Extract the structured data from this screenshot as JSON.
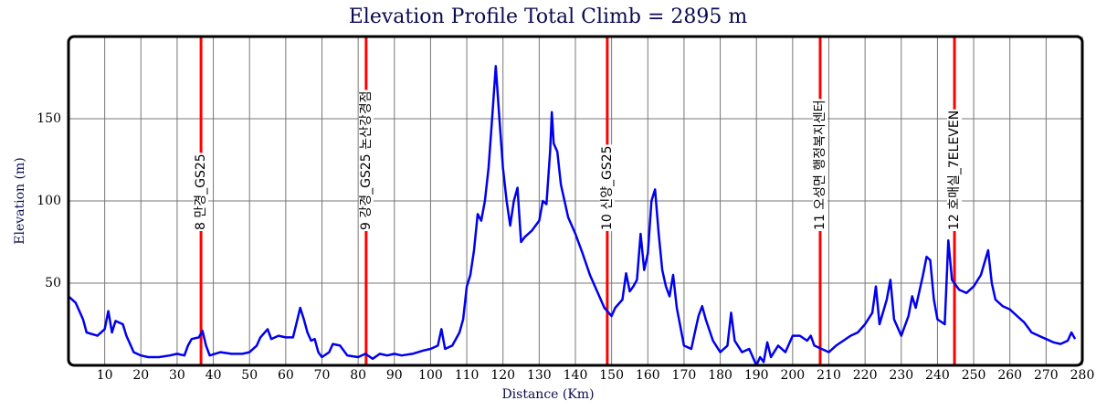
{
  "chart_data": {
    "type": "line",
    "title": "Elevation Profile      Total Climb = 2895 m",
    "xlabel": "Distance (Km)",
    "ylabel": "Elevation (m)",
    "xlim": [
      0,
      280
    ],
    "ylim": [
      0,
      200
    ],
    "xticks": [
      10,
      20,
      30,
      40,
      50,
      60,
      70,
      80,
      90,
      100,
      110,
      120,
      130,
      140,
      150,
      160,
      170,
      180,
      190,
      200,
      210,
      220,
      230,
      240,
      250,
      260,
      270,
      280
    ],
    "yticks": [
      50,
      100,
      150
    ],
    "grid": true,
    "x": [
      0,
      2,
      4,
      5,
      8,
      10,
      11,
      12,
      13,
      15,
      16,
      18,
      20,
      22,
      25,
      28,
      30,
      32,
      33,
      34,
      36,
      37,
      38,
      39,
      42,
      45,
      48,
      50,
      52,
      53,
      55,
      56,
      58,
      60,
      62,
      63,
      64,
      65,
      66,
      67,
      68,
      69,
      70,
      72,
      73,
      75,
      77,
      80,
      82,
      84,
      86,
      88,
      90,
      92,
      95,
      98,
      100,
      102,
      103,
      104,
      106,
      108,
      109,
      110,
      111,
      112,
      113,
      114,
      115,
      116,
      117,
      118,
      119,
      120,
      121,
      122,
      123,
      124,
      125,
      126,
      128,
      130,
      131,
      132,
      133,
      133.5,
      134,
      135,
      136,
      137,
      138,
      140,
      142,
      144,
      146,
      148,
      150,
      151,
      153,
      154,
      155,
      156,
      157,
      158,
      159,
      160,
      161,
      162,
      163,
      164,
      165,
      166,
      167,
      168,
      170,
      172,
      173,
      174,
      175,
      176,
      178,
      180,
      182,
      183,
      184,
      186,
      188,
      190,
      191,
      192,
      193,
      194,
      196,
      198,
      200,
      202,
      204,
      205,
      206,
      208,
      210,
      212,
      214,
      216,
      218,
      220,
      222,
      223,
      224,
      226,
      227,
      228,
      230,
      232,
      233,
      234,
      236,
      237,
      238,
      239,
      240,
      242,
      243,
      244,
      246,
      248,
      250,
      252,
      254,
      255,
      256,
      258,
      260,
      262,
      264,
      266,
      268,
      270,
      272,
      274,
      276,
      277,
      278
    ],
    "series": [
      {
        "name": "Elevation",
        "color": "#0000ee",
        "values": [
          42,
          38,
          28,
          20,
          18,
          22,
          33,
          20,
          27,
          25,
          18,
          8,
          6,
          5,
          5,
          6,
          7,
          6,
          12,
          16,
          17,
          21,
          12,
          6,
          8,
          7,
          7,
          8,
          12,
          17,
          22,
          16,
          18,
          17,
          17,
          26,
          35,
          28,
          20,
          15,
          16,
          8,
          5,
          8,
          13,
          12,
          6,
          5,
          7,
          4,
          7,
          6,
          7,
          6,
          7,
          9,
          10,
          12,
          22,
          10,
          12,
          20,
          28,
          48,
          55,
          70,
          92,
          88,
          100,
          120,
          150,
          182,
          150,
          120,
          100,
          85,
          100,
          108,
          75,
          78,
          82,
          88,
          100,
          98,
          130,
          154,
          135,
          130,
          110,
          100,
          90,
          80,
          68,
          55,
          45,
          35,
          30,
          35,
          40,
          56,
          45,
          48,
          52,
          80,
          58,
          68,
          100,
          107,
          80,
          58,
          48,
          42,
          55,
          35,
          12,
          10,
          20,
          30,
          36,
          28,
          15,
          8,
          12,
          32,
          15,
          8,
          10,
          0,
          5,
          2,
          14,
          5,
          12,
          8,
          18,
          18,
          15,
          18,
          12,
          10,
          8,
          12,
          15,
          18,
          20,
          25,
          32,
          48,
          25,
          40,
          52,
          28,
          18,
          30,
          42,
          35,
          55,
          66,
          64,
          40,
          28,
          25,
          76,
          52,
          46,
          44,
          48,
          55,
          70,
          50,
          40,
          36,
          34,
          30,
          26,
          20,
          18,
          16,
          14,
          13,
          15,
          20,
          16
        ]
      }
    ],
    "annotation_color": "#ff0000",
    "annotations": [
      {
        "x": 36.6,
        "label": "8 만경_GS25"
      },
      {
        "x": 82.2,
        "label": "9 강경_GS25 논산강경점"
      },
      {
        "x": 148.8,
        "label": "10 신양_GS25"
      },
      {
        "x": 207.6,
        "label": "11 오성면 행정복지센터"
      },
      {
        "x": 244.7,
        "label": "12 호매실_7ELEVEN"
      }
    ]
  }
}
